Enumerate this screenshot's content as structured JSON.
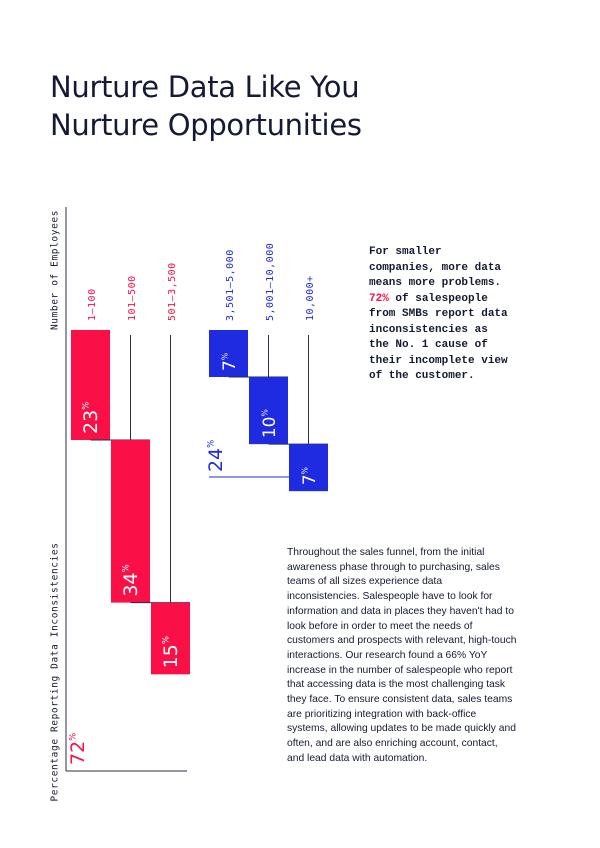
{
  "title_lines": [
    "Nurture Data Like You",
    "Nurture Opportunities"
  ],
  "left_axis_top_label": "Number of Employees",
  "left_axis_bottom_label": "Percentage Reporting Data Inconsistencies",
  "side_note": {
    "before": "For smaller companies, more data means more problems.",
    "highlight": "72%",
    "after": "of salespeople from SMBs report data inconsistencies as the No. 1 cause of their incomplete view of the customer."
  },
  "body_copy": "Throughout the sales funnel, from the initial awareness phase through to purchasing, sales teams of all sizes experience data inconsistencies. Salespeople have to look for information and data in places they haven't had to look before in order to meet the needs of customers and prospects with relevant, high-touch interactions. Our research found a 66% YoY increase in the number of salespeople who report that accessing data is the most challenging task they face. To ensure consistent data, sales teams are prioritizing integration with back-office systems, allowing updates to be made quickly and often, and are also enriching account, contact, and lead data with automation.",
  "colors": {
    "red": "#fa0f46",
    "blue": "#1e2be0",
    "ink": "#141a33",
    "line": "#2a2f45"
  },
  "chart_data": [
    {
      "type": "bar",
      "group": "red",
      "categories": [
        "1–100",
        "101–500",
        "501–3,500"
      ],
      "values": [
        23,
        34,
        15
      ],
      "total": 72,
      "unit": "%"
    },
    {
      "type": "bar",
      "group": "blue",
      "categories": [
        "3,501–5,000",
        "5,001–10,000",
        "10,000+"
      ],
      "values": [
        7,
        10,
        7
      ],
      "total": 24,
      "unit": "%"
    }
  ]
}
